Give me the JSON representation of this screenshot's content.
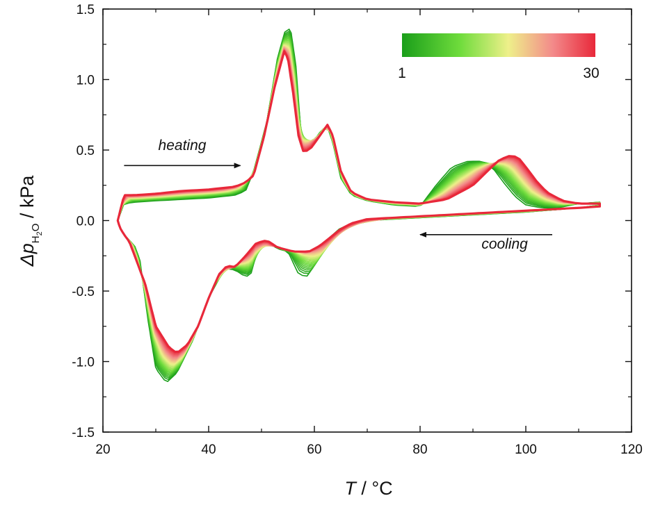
{
  "chart_data": {
    "type": "line",
    "title": "",
    "xlabel": {
      "symbol": "T",
      "unit": " / °C"
    },
    "ylabel": {
      "delta": "Δ",
      "symbol": "p",
      "subscript_h": "H",
      "subscript_2": "2",
      "subscript_o": "O",
      "unit": " / kPa"
    },
    "xlim": [
      20,
      120
    ],
    "ylim": [
      -1.5,
      1.5
    ],
    "x_ticks": [
      20,
      40,
      60,
      80,
      100,
      120
    ],
    "x_tick_labels": [
      "20",
      "40",
      "60",
      "80",
      "100",
      "120"
    ],
    "y_ticks": [
      -1.5,
      -1.0,
      -0.5,
      0.0,
      0.5,
      1.0,
      1.5
    ],
    "y_tick_labels": [
      "-1.5",
      "-1.0",
      "-0.5",
      "0.0",
      "0.5",
      "1.0",
      "1.5"
    ],
    "grid": false,
    "colorbar": {
      "min_label": "1",
      "max_label": "30",
      "colors": [
        "#1a9e1a",
        "#6fdc3c",
        "#eef08a",
        "#f38a8a",
        "#e8283a"
      ]
    },
    "annotations": [
      {
        "text": "heating",
        "x": 35,
        "y": 0.5,
        "arrow_from": [
          24,
          0.39
        ],
        "arrow_to": [
          46,
          0.39
        ]
      },
      {
        "text": "cooling",
        "x": 96,
        "y": -0.2,
        "arrow_from": [
          105,
          -0.1
        ],
        "arrow_to": [
          80,
          -0.1
        ]
      }
    ],
    "series_count": 30,
    "representative_series": [
      {
        "cycle": 1,
        "heating": {
          "x": [
            22.8,
            24,
            26,
            30,
            35,
            40,
            45,
            47,
            48.5,
            51,
            53,
            54.5,
            55.5,
            56.5,
            57.5,
            58.5,
            60,
            61.5,
            62.5,
            63.5,
            65,
            67,
            70,
            75,
            80,
            83,
            86,
            89,
            92,
            94,
            96,
            98,
            100,
            103,
            106,
            110,
            114
          ],
          "y": [
            0.0,
            0.12,
            0.13,
            0.14,
            0.15,
            0.16,
            0.18,
            0.21,
            0.35,
            0.7,
            1.15,
            1.35,
            1.36,
            1.1,
            0.6,
            0.55,
            0.57,
            0.65,
            0.66,
            0.55,
            0.3,
            0.18,
            0.14,
            0.11,
            0.1,
            0.25,
            0.38,
            0.42,
            0.42,
            0.36,
            0.26,
            0.17,
            0.11,
            0.09,
            0.09,
            0.12,
            0.13
          ]
        },
        "cooling": {
          "x": [
            114,
            110,
            100,
            90,
            80,
            70,
            65,
            62,
            60,
            58.5,
            57,
            55,
            53,
            51,
            49.5,
            48,
            47,
            45,
            43,
            40,
            37,
            34,
            32,
            30,
            28.5,
            27,
            26,
            25,
            24,
            23.2,
            22.8
          ],
          "y": [
            0.11,
            0.09,
            0.06,
            0.04,
            0.02,
            0.0,
            -0.05,
            -0.15,
            -0.32,
            -0.4,
            -0.38,
            -0.22,
            -0.2,
            -0.15,
            -0.17,
            -0.38,
            -0.4,
            -0.35,
            -0.34,
            -0.55,
            -0.85,
            -1.08,
            -1.15,
            -1.05,
            -0.7,
            -0.28,
            -0.18,
            -0.14,
            -0.1,
            -0.05,
            0.0
          ]
        }
      },
      {
        "cycle": 30,
        "heating": {
          "x": [
            22.8,
            24,
            26,
            30,
            35,
            40,
            45,
            47,
            48.5,
            50.5,
            52.5,
            54.3,
            55,
            56,
            57,
            58,
            59.5,
            61,
            62.5,
            63.5,
            65,
            67,
            70,
            75,
            80,
            85,
            90,
            93,
            95,
            97,
            98.5,
            100,
            102,
            104,
            107,
            110,
            114
          ],
          "y": [
            0.0,
            0.18,
            0.18,
            0.19,
            0.21,
            0.22,
            0.24,
            0.27,
            0.32,
            0.6,
            0.95,
            1.2,
            1.15,
            0.9,
            0.6,
            0.48,
            0.52,
            0.6,
            0.68,
            0.6,
            0.35,
            0.2,
            0.15,
            0.13,
            0.12,
            0.15,
            0.25,
            0.36,
            0.43,
            0.46,
            0.45,
            0.38,
            0.28,
            0.2,
            0.14,
            0.12,
            0.12
          ]
        },
        "cooling": {
          "x": [
            114,
            110,
            100,
            90,
            80,
            70,
            67,
            65,
            63,
            61,
            59,
            56,
            53,
            51,
            49,
            47,
            45,
            43.5,
            42,
            40,
            38,
            36,
            34,
            32.5,
            30,
            28,
            26,
            25,
            24,
            23.2,
            22.8
          ],
          "y": [
            0.1,
            0.09,
            0.07,
            0.05,
            0.03,
            0.01,
            -0.02,
            -0.06,
            -0.12,
            -0.18,
            -0.22,
            -0.22,
            -0.19,
            -0.14,
            -0.16,
            -0.25,
            -0.33,
            -0.32,
            -0.38,
            -0.55,
            -0.75,
            -0.88,
            -0.94,
            -0.9,
            -0.75,
            -0.45,
            -0.25,
            -0.15,
            -0.1,
            -0.05,
            0.0
          ]
        }
      }
    ]
  }
}
